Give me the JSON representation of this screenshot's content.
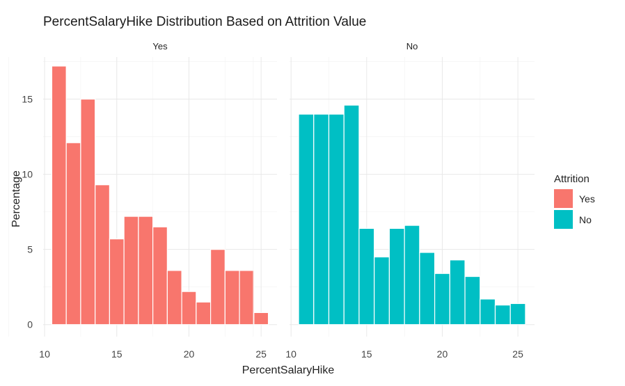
{
  "chart_data": {
    "type": "bar",
    "title": "PercentSalaryHike Distribution Based on Attrition Value",
    "xlabel": "PercentSalaryHike",
    "ylabel": "Percentage",
    "x_ticks": [
      10,
      15,
      20,
      25
    ],
    "y_ticks": [
      0,
      5,
      10,
      15
    ],
    "xlim": [
      9.9,
      26.1
    ],
    "ylim": [
      -0.8,
      17.8
    ],
    "grid": true,
    "legend": {
      "title": "Attrition",
      "position": "right",
      "entries": [
        {
          "label": "Yes",
          "color": "#F8766D"
        },
        {
          "label": "No",
          "color": "#00BFC4"
        }
      ]
    },
    "panels": [
      {
        "label": "Yes",
        "color": "#F8766D",
        "x": [
          11,
          12,
          13,
          14,
          15,
          16,
          17,
          18,
          19,
          20,
          21,
          22,
          23,
          24,
          25
        ],
        "values": [
          17.2,
          12.1,
          15.0,
          9.3,
          5.7,
          7.2,
          7.2,
          6.5,
          3.6,
          2.2,
          1.5,
          5.0,
          3.6,
          3.6,
          0.8
        ]
      },
      {
        "label": "No",
        "color": "#00BFC4",
        "x": [
          11,
          12,
          13,
          14,
          15,
          16,
          17,
          18,
          19,
          20,
          21,
          22,
          23,
          24,
          25
        ],
        "values": [
          14.0,
          14.0,
          14.0,
          14.6,
          6.4,
          4.5,
          6.4,
          6.6,
          4.8,
          3.4,
          4.3,
          3.2,
          1.7,
          1.3,
          1.4
        ]
      }
    ]
  }
}
